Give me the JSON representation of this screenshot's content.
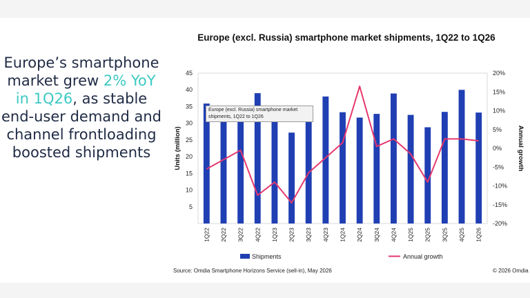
{
  "slide": {
    "headline_before": "Europe’s smartphone market grew ",
    "headline_highlight": "2% YoY in 1Q26",
    "headline_after": ", as stable end-user demand and channel frontloading boosted shipments",
    "highlight_color": "#3cc9c3",
    "source": "Source: Omdia Smartphone Horizons Service (sell-in), May 2026",
    "copyright": "© 2026 Omdia",
    "tooltip": "Europe (excl. Russia) smartphone market shipments, 1Q22 to 1Q26"
  },
  "chart_data": {
    "type": "bar",
    "title": "Europe (excl. Russia) smartphone market shipments, 1Q22 to 1Q26",
    "xlabel": "",
    "ylabel": "Units (million)",
    "y2label": "Annual growth",
    "categories": [
      "1Q22",
      "2Q22",
      "3Q22",
      "4Q22",
      "1Q23",
      "2Q23",
      "3Q23",
      "4Q23",
      "1Q24",
      "2Q24",
      "3Q24",
      "4Q24",
      "1Q25",
      "2Q25",
      "3Q25",
      "4Q25",
      "1Q26"
    ],
    "ylim": [
      0,
      45
    ],
    "yticks": [
      5,
      10,
      15,
      20,
      25,
      30,
      35,
      40,
      45
    ],
    "y2lim": [
      -20,
      20
    ],
    "y2ticks": [
      "-20%",
      "-15%",
      "-10%",
      "-5%",
      "0%",
      "5%",
      "10%",
      "15%",
      "20%"
    ],
    "series": [
      {
        "name": "Shipments",
        "kind": "bar",
        "color": "#1f3fb3",
        "values": [
          35.9,
          32.1,
          32.6,
          39.0,
          31.5,
          27.2,
          31.2,
          38.0,
          33.3,
          31.7,
          32.8,
          38.9,
          32.5,
          28.8,
          33.4,
          40.0,
          33.2
        ]
      },
      {
        "name": "Annual growth",
        "kind": "line",
        "color": "#e5386d",
        "values": [
          -5.5,
          -3.0,
          -0.5,
          -12.5,
          -9.0,
          -14.5,
          -6.5,
          -2.5,
          1.5,
          16.5,
          0.5,
          2.5,
          -1.5,
          -9.0,
          2.5,
          2.5,
          2.0
        ]
      }
    ],
    "grid": false,
    "legend": "bottom"
  }
}
